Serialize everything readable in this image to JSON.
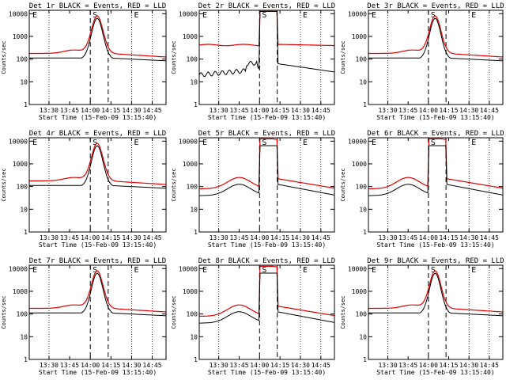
{
  "chart_data": [
    {
      "type": "line",
      "title": "Det 1r BLACK = Events, RED = LLD",
      "xlabel": "Start Time (15-Feb-09 13:15:40)",
      "ylabel": "Counts/sec",
      "ylim": [
        1,
        10000
      ],
      "yscale": "log",
      "x": [
        "13:30",
        "13:45",
        "14:00",
        "14:15",
        "14:30",
        "14:45"
      ],
      "markers": {
        "solid": [
          "14:00",
          "14:13"
        ],
        "dotted": [
          "13:30",
          "14:30",
          "14:45"
        ],
        "letters": [
          {
            "t": "S",
            "at": "14:00"
          },
          {
            "t": "E",
            "at": "13:15"
          },
          {
            "t": "E",
            "at": "14:30"
          }
        ]
      },
      "series": [
        {
          "name": "Events",
          "color": "#000000"
        },
        {
          "name": "LLD",
          "color": "#e00000"
        }
      ],
      "pattern": "flare"
    },
    {
      "type": "line",
      "title": "Det 2r BLACK = Events, RED = LLD",
      "xlabel": "Start Time (15-Feb-09 13:15:40)",
      "ylabel": "Counts/sec",
      "ylim": [
        1,
        10000
      ],
      "yscale": "log",
      "x": [
        "13:30",
        "13:45",
        "14:00",
        "14:15",
        "14:30",
        "14:45"
      ],
      "markers": {
        "solid": [
          "14:00",
          "14:13"
        ],
        "dotted": [
          "13:30",
          "14:30",
          "14:45"
        ],
        "letters": [
          {
            "t": "S",
            "at": "14:00"
          },
          {
            "t": "E",
            "at": "13:15"
          },
          {
            "t": "E",
            "at": "14:30"
          }
        ]
      },
      "series": [
        {
          "name": "Events",
          "color": "#000000"
        },
        {
          "name": "LLD",
          "color": "#e00000"
        }
      ],
      "pattern": "high"
    },
    {
      "type": "line",
      "title": "Det 3r BLACK = Events, RED = LLD",
      "xlabel": "Start Time (15-Feb-09 13:15:40)",
      "ylabel": "Counts/sec",
      "ylim": [
        1,
        10000
      ],
      "yscale": "log",
      "x": [
        "13:30",
        "13:45",
        "14:00",
        "14:15",
        "14:30",
        "14:45"
      ],
      "markers": {
        "solid": [
          "14:00",
          "14:13"
        ],
        "dotted": [
          "13:30",
          "14:30",
          "14:45"
        ],
        "letters": [
          {
            "t": "S",
            "at": "14:00"
          },
          {
            "t": "E",
            "at": "13:15"
          },
          {
            "t": "E",
            "at": "14:30"
          }
        ]
      },
      "series": [
        {
          "name": "Events",
          "color": "#000000"
        },
        {
          "name": "LLD",
          "color": "#e00000"
        }
      ],
      "pattern": "flare"
    },
    {
      "type": "line",
      "title": "Det 4r BLACK = Events, RED = LLD",
      "xlabel": "Start Time (15-Feb-09 13:15:40)",
      "ylabel": "Counts/sec",
      "ylim": [
        1,
        10000
      ],
      "yscale": "log",
      "x": [
        "13:30",
        "13:45",
        "14:00",
        "14:15",
        "14:30",
        "14:45"
      ],
      "markers": {
        "solid": [
          "14:00",
          "14:13"
        ],
        "dotted": [
          "13:30",
          "14:30",
          "14:45"
        ],
        "letters": [
          {
            "t": "S",
            "at": "14:00"
          },
          {
            "t": "E",
            "at": "13:15"
          },
          {
            "t": "E",
            "at": "14:30"
          }
        ]
      },
      "series": [
        {
          "name": "Events",
          "color": "#000000"
        },
        {
          "name": "LLD",
          "color": "#e00000"
        }
      ],
      "pattern": "flare"
    },
    {
      "type": "line",
      "title": "Det 5r BLACK = Events, RED = LLD",
      "xlabel": "Start Time (15-Feb-09 13:15:40)",
      "ylabel": "Counts/sec",
      "ylim": [
        1,
        10000
      ],
      "yscale": "log",
      "x": [
        "13:30",
        "13:45",
        "14:00",
        "14:15",
        "14:30",
        "14:45"
      ],
      "markers": {
        "solid": [
          "14:00",
          "14:13"
        ],
        "dotted": [
          "13:30",
          "14:30",
          "14:45"
        ],
        "letters": [
          {
            "t": "S",
            "at": "14:00"
          },
          {
            "t": "E",
            "at": "13:15"
          },
          {
            "t": "E",
            "at": "14:30"
          }
        ]
      },
      "series": [
        {
          "name": "Events",
          "color": "#000000"
        },
        {
          "name": "LLD",
          "color": "#e00000"
        }
      ],
      "pattern": "mid"
    },
    {
      "type": "line",
      "title": "Det 6r BLACK = Events, RED = LLD",
      "xlabel": "Start Time (15-Feb-09 13:15:40)",
      "ylabel": "Counts/sec",
      "ylim": [
        1,
        10000
      ],
      "yscale": "log",
      "x": [
        "13:30",
        "13:45",
        "14:00",
        "14:15",
        "14:30",
        "14:45"
      ],
      "markers": {
        "solid": [
          "14:00",
          "14:13"
        ],
        "dotted": [
          "13:30",
          "14:30",
          "14:45"
        ],
        "letters": [
          {
            "t": "S",
            "at": "14:00"
          },
          {
            "t": "E",
            "at": "13:15"
          },
          {
            "t": "E",
            "at": "14:30"
          }
        ]
      },
      "series": [
        {
          "name": "Events",
          "color": "#000000"
        },
        {
          "name": "LLD",
          "color": "#e00000"
        }
      ],
      "pattern": "mid"
    },
    {
      "type": "line",
      "title": "Det 7r BLACK = Events, RED = LLD",
      "xlabel": "Start Time (15-Feb-09 13:15:40)",
      "ylabel": "Counts/sec",
      "ylim": [
        1,
        10000
      ],
      "yscale": "log",
      "x": [
        "13:30",
        "13:45",
        "14:00",
        "14:15",
        "14:30",
        "14:45"
      ],
      "markers": {
        "solid": [
          "14:00",
          "14:13"
        ],
        "dotted": [
          "13:30",
          "14:30",
          "14:45"
        ],
        "letters": [
          {
            "t": "S",
            "at": "14:00"
          },
          {
            "t": "E",
            "at": "13:15"
          },
          {
            "t": "E",
            "at": "14:30"
          }
        ]
      },
      "series": [
        {
          "name": "Events",
          "color": "#000000"
        },
        {
          "name": "LLD",
          "color": "#e00000"
        }
      ],
      "pattern": "flare"
    },
    {
      "type": "line",
      "title": "Det 8r BLACK = Events, RED = LLD",
      "xlabel": "Start Time (15-Feb-09 13:15:40)",
      "ylabel": "Counts/sec",
      "ylim": [
        1,
        10000
      ],
      "yscale": "log",
      "x": [
        "13:30",
        "13:45",
        "14:00",
        "14:15",
        "14:30",
        "14:45"
      ],
      "markers": {
        "solid": [
          "14:00",
          "14:13"
        ],
        "dotted": [
          "13:30",
          "14:30",
          "14:45"
        ],
        "letters": [
          {
            "t": "S",
            "at": "14:00"
          },
          {
            "t": "E",
            "at": "13:15"
          },
          {
            "t": "E",
            "at": "14:30"
          }
        ]
      },
      "series": [
        {
          "name": "Events",
          "color": "#000000"
        },
        {
          "name": "LLD",
          "color": "#e00000"
        }
      ],
      "pattern": "mid"
    },
    {
      "type": "line",
      "title": "Det 9r BLACK = Events, RED = LLD",
      "xlabel": "Start Time (15-Feb-09 13:15:40)",
      "ylabel": "Counts/sec",
      "ylim": [
        1,
        10000
      ],
      "yscale": "log",
      "x": [
        "13:30",
        "13:45",
        "14:00",
        "14:15",
        "14:30",
        "14:45"
      ],
      "markers": {
        "solid": [
          "14:00",
          "14:13"
        ],
        "dotted": [
          "13:30",
          "14:30",
          "14:45"
        ],
        "letters": [
          {
            "t": "S",
            "at": "14:00"
          },
          {
            "t": "E",
            "at": "13:15"
          },
          {
            "t": "E",
            "at": "14:30"
          }
        ]
      },
      "series": [
        {
          "name": "Events",
          "color": "#000000"
        },
        {
          "name": "LLD",
          "color": "#e00000"
        }
      ],
      "pattern": "flare"
    }
  ],
  "ytick_labels": [
    "1",
    "10",
    "100",
    "1000",
    "10000"
  ],
  "xtick_labels": [
    "13:30",
    "13:45",
    "14:00",
    "14:15",
    "14:30",
    "14:45"
  ]
}
